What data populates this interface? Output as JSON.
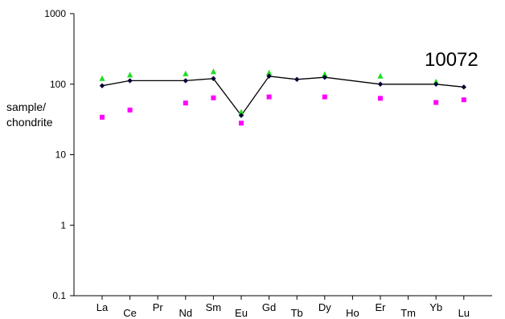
{
  "chart_data": {
    "type": "line",
    "title": "",
    "sample_label": "10072",
    "ylabel_lines": [
      "sample/",
      "chondrite"
    ],
    "xlabel": "",
    "yscale": "log",
    "ylim": [
      0.1,
      1000
    ],
    "yticks": [
      "0.1",
      "1",
      "10",
      "100",
      "1000"
    ],
    "categories": [
      "La",
      "Ce",
      "Pr",
      "Nd",
      "Sm",
      "Eu",
      "Gd",
      "Tb",
      "Dy",
      "Ho",
      "Er",
      "Tm",
      "Yb",
      "Lu"
    ],
    "series": [
      {
        "marker": "diamond",
        "color": "#000033",
        "line": true,
        "values": [
          95,
          112,
          null,
          112,
          120,
          36,
          130,
          117,
          125,
          null,
          100,
          null,
          100,
          91
        ]
      },
      {
        "marker": "triangle",
        "color": "#22dd22",
        "line": false,
        "values": [
          120,
          135,
          null,
          140,
          150,
          40,
          145,
          null,
          138,
          null,
          130,
          null,
          108,
          null
        ]
      },
      {
        "marker": "square",
        "color": "#ff00ff",
        "line": false,
        "values": [
          34,
          43,
          null,
          54,
          64,
          28,
          66,
          null,
          66,
          null,
          63,
          null,
          55,
          60
        ]
      }
    ],
    "grid": false,
    "legend": "none"
  }
}
